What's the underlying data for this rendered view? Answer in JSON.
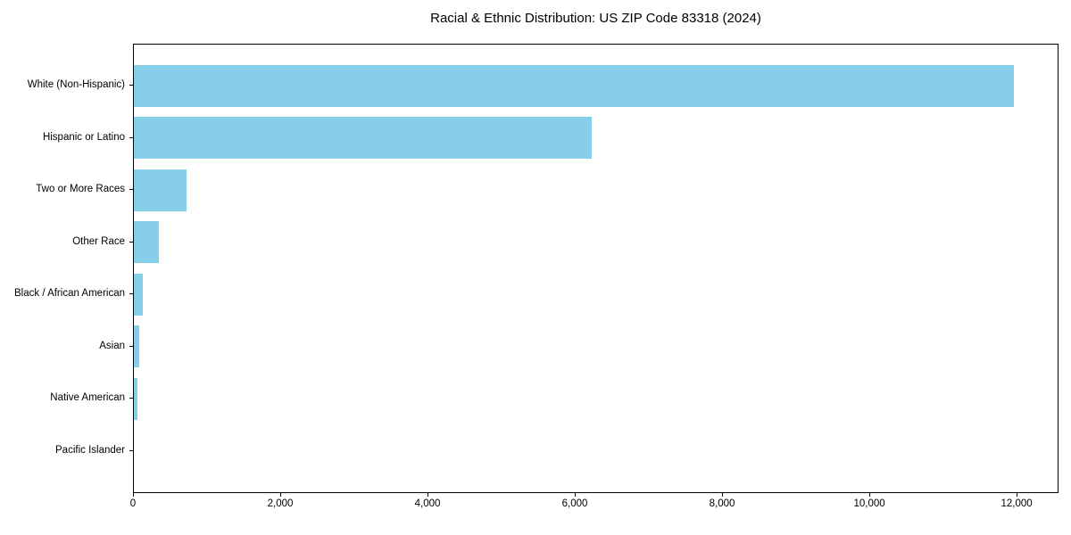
{
  "figure": {
    "kind": "horizontal-bar-chart"
  },
  "chart_data": {
    "type": "bar",
    "orientation": "horizontal",
    "title": "Racial & Ethnic Distribution: US ZIP Code 83318 (2024)",
    "categories": [
      "White (Non-Hispanic)",
      "Hispanic or Latino",
      "Two or More Races",
      "Other Race",
      "Black / African American",
      "Asian",
      "Native American",
      "Pacific Islander"
    ],
    "values": [
      11950,
      6220,
      715,
      340,
      120,
      75,
      50,
      0
    ],
    "xlabel": "",
    "ylabel": "",
    "xlim": [
      0,
      12544
    ],
    "x_ticks": [
      0,
      2000,
      4000,
      6000,
      8000,
      10000,
      12000
    ],
    "x_tick_labels": [
      "0",
      "2,000",
      "4,000",
      "6,000",
      "8,000",
      "10,000",
      "12,000"
    ],
    "bar_color": "#87CEEB",
    "axis_color": "#000000",
    "background_color": "#FFFFFF",
    "grid": false,
    "legend": "none"
  }
}
